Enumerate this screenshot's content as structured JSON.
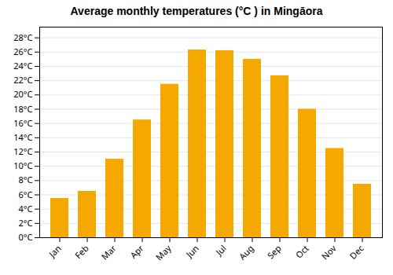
{
  "chart_data": {
    "type": "bar",
    "title": "Average monthly temperatures (°C ) in Mingāora",
    "categories": [
      "Jan",
      "Feb",
      "Mar",
      "Apr",
      "May",
      "Jun",
      "Jul",
      "Aug",
      "Sep",
      "Oct",
      "Nov",
      "Dec"
    ],
    "values": [
      5.5,
      6.5,
      11,
      16.5,
      21.5,
      26.3,
      26.2,
      25,
      22.7,
      18,
      12.5,
      7.5
    ],
    "color": "#F5A800",
    "ylim": [
      0,
      29.5
    ],
    "yticks": [
      {
        "value": 0,
        "label": "0°C"
      },
      {
        "value": 2,
        "label": "2°C"
      },
      {
        "value": 4,
        "label": "4°C"
      },
      {
        "value": 6,
        "label": "6°C"
      },
      {
        "value": 8,
        "label": "8°C"
      },
      {
        "value": 10,
        "label": "10°C"
      },
      {
        "value": 12,
        "label": "12°C"
      },
      {
        "value": 14,
        "label": "14°C"
      },
      {
        "value": 16,
        "label": "16°C"
      },
      {
        "value": 18,
        "label": "18°C"
      },
      {
        "value": 20,
        "label": "20°C"
      },
      {
        "value": 22,
        "label": "22°C"
      },
      {
        "value": 24,
        "label": "24°C"
      },
      {
        "value": 26,
        "label": "26°C"
      },
      {
        "value": 28,
        "label": "28°C"
      }
    ],
    "grid": true
  }
}
